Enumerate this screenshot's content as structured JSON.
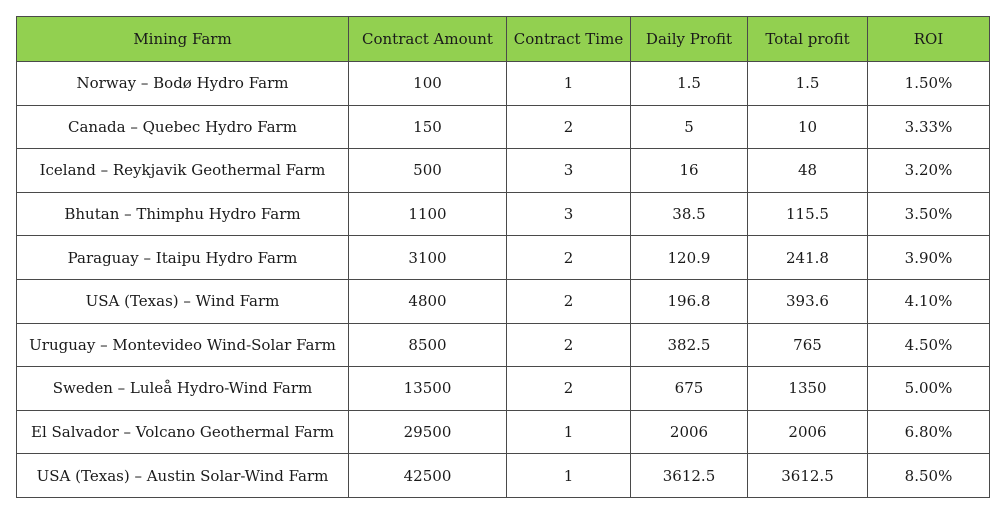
{
  "table": {
    "headers": [
      "Mining Farm",
      "Contract Amount",
      "Contract Time",
      "Daily Profit",
      "Total profit",
      "ROI"
    ],
    "rows": [
      [
        "Norway – Bodø Hydro Farm",
        "100",
        "1",
        "1.5",
        "1.5",
        "1.50%"
      ],
      [
        "Canada – Quebec Hydro Farm",
        "150",
        "2",
        "5",
        "10",
        "3.33%"
      ],
      [
        "Iceland – Reykjavik Geothermal Farm",
        "500",
        "3",
        "16",
        "48",
        "3.20%"
      ],
      [
        "Bhutan – Thimphu Hydro Farm",
        "1100",
        "3",
        "38.5",
        "115.5",
        "3.50%"
      ],
      [
        "Paraguay – Itaipu Hydro Farm",
        "3100",
        "2",
        "120.9",
        "241.8",
        "3.90%"
      ],
      [
        "USA (Texas) – Wind Farm",
        "4800",
        "2",
        "196.8",
        "393.6",
        "4.10%"
      ],
      [
        "Uruguay – Montevideo Wind-Solar Farm",
        "8500",
        "2",
        "382.5",
        "765",
        "4.50%"
      ],
      [
        "Sweden – Luleå Hydro-Wind Farm",
        "13500",
        "2",
        "675",
        "1350",
        "5.00%"
      ],
      [
        "El Salvador – Volcano Geothermal Farm",
        "29500",
        "1",
        "2006",
        "2006",
        "6.80%"
      ],
      [
        "USA (Texas) – Austin Solar-Wind Farm",
        "42500",
        "1",
        "3612.5",
        "3612.5",
        "8.50%"
      ]
    ]
  },
  "colors": {
    "header_background": "#92d050",
    "border": "#4a4a4a"
  }
}
